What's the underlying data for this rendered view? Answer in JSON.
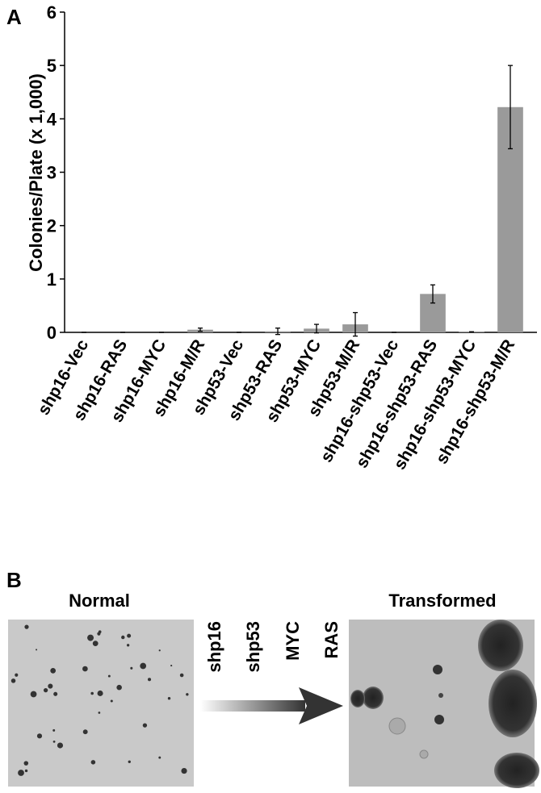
{
  "chart_data": {
    "type": "bar",
    "panel_label": "A",
    "ylabel": "Colonies/Plate (x 1,000)",
    "categories": [
      "shp16-Vec",
      "shp16-RAS",
      "shp16-MYC",
      "shp16-M/R",
      "shp53-Vec",
      "shp53-RAS",
      "shp53-MYC",
      "shp53-M/R",
      "shp16-shp53-Vec",
      "shp16-shp53-RAS",
      "shp16-shp53-MYC",
      "shp16-shp53-M/R"
    ],
    "values": [
      0,
      0,
      0,
      0.05,
      0,
      0.02,
      0.07,
      0.15,
      0,
      0.72,
      0.01,
      4.22
    ],
    "errors": [
      0,
      0,
      0,
      0.03,
      0,
      0.06,
      0.08,
      0.22,
      0,
      0.17,
      0,
      0.78
    ],
    "color": "#9a9a9a",
    "ylim": [
      0,
      6
    ],
    "yticks": [
      0,
      1,
      2,
      3,
      4,
      5,
      6
    ],
    "grid": false
  },
  "figure_b": {
    "panel_label": "B",
    "left_title": "Normal",
    "right_title": "Transformed",
    "arrow_labels": [
      "shp16",
      "shp53",
      "MYC",
      "RAS"
    ]
  }
}
